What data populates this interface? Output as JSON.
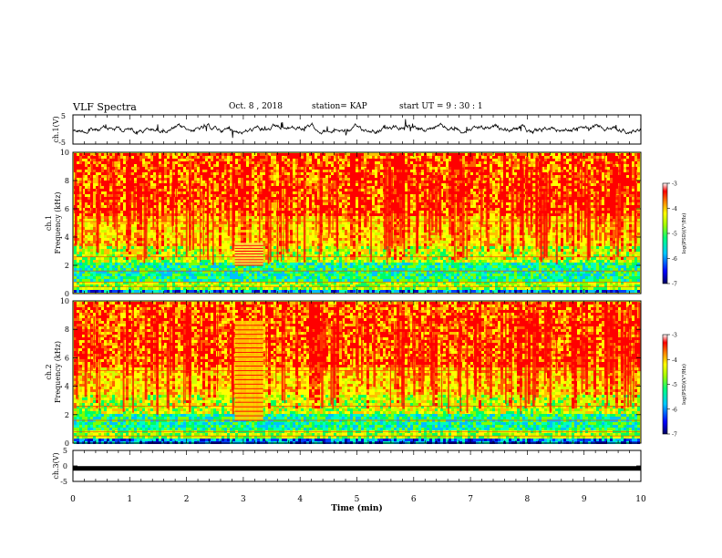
{
  "header": {
    "title": "VLF Spectra",
    "date": "Oct. 8 , 2018",
    "station": "station= KAP",
    "start": "start UT = 9 : 30 : 1"
  },
  "chart_data": [
    {
      "type": "line",
      "name": "ch1-waveform",
      "ylabel": "ch.1(V)",
      "ylim": [
        -5,
        5
      ],
      "y_ticks": [
        "5",
        "-5"
      ],
      "xlim": [
        0,
        10
      ]
    },
    {
      "type": "heatmap",
      "name": "ch1-spectrogram",
      "ylabel_top": "ch.1",
      "ylabel": "Frequency (kHz)",
      "ylim": [
        0,
        10
      ],
      "y_ticks": [
        "0",
        "2",
        "4",
        "6",
        "8",
        "10"
      ],
      "colorbar": {
        "label": "log(PSD)(V²/Hz)",
        "ticks": [
          "-3",
          "-4",
          "-5",
          "-6",
          "-7"
        ],
        "range": [
          -7,
          -3
        ],
        "colors": [
          "#000080",
          "#0000ff",
          "#00c0ff",
          "#00ff80",
          "#80ff00",
          "#ffff00",
          "#ff8000",
          "#ff0000",
          "#ffffff"
        ]
      }
    },
    {
      "type": "heatmap",
      "name": "ch2-spectrogram",
      "ylabel_top": "ch.2",
      "ylabel": "Frequency (kHz)",
      "ylim": [
        0,
        10
      ],
      "y_ticks": [
        "0",
        "2",
        "4",
        "6",
        "8",
        "10"
      ],
      "colorbar": {
        "label": "log(PSD)(V²/Hz)",
        "ticks": [
          "-3",
          "-4",
          "-5",
          "-6",
          "-7"
        ],
        "range": [
          -7,
          -3
        ]
      }
    },
    {
      "type": "line",
      "name": "ch3-waveform",
      "ylabel": "ch.3(V)",
      "ylim": [
        -5,
        5
      ],
      "y_ticks": [
        "5",
        "0",
        "-5"
      ],
      "xlim": [
        0,
        10
      ],
      "level": -0.8
    }
  ],
  "x_axis": {
    "label": "Time (min)",
    "ticks": [
      "0",
      "1",
      "2",
      "3",
      "4",
      "5",
      "6",
      "7",
      "8",
      "9",
      "10"
    ],
    "range": [
      0,
      10
    ]
  }
}
